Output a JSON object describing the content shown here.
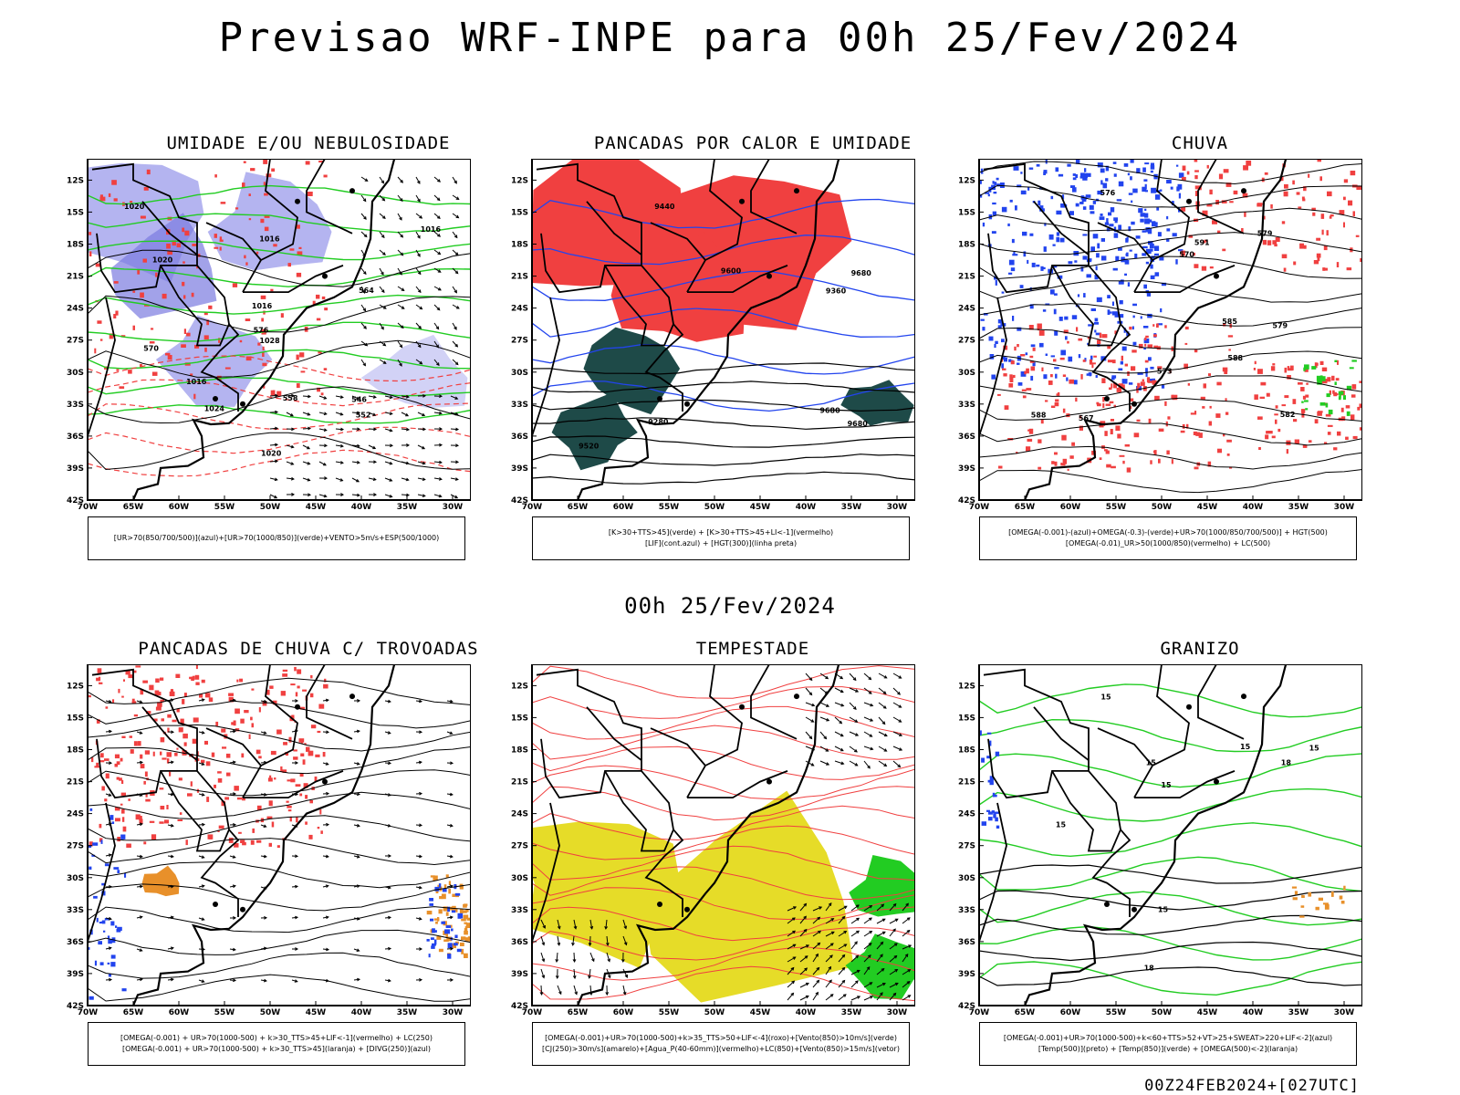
{
  "title": "Previsao WRF-INPE  para 00h 25/Fev/2024",
  "mid_title": "00h 25/Fev/2024",
  "footer": "00Z24FEB2024+[027UTC]",
  "axes": {
    "lat_labels": [
      "12S",
      "15S",
      "18S",
      "21S",
      "24S",
      "27S",
      "30S",
      "33S",
      "36S",
      "39S",
      "42S"
    ],
    "lon_labels": [
      "70W",
      "65W",
      "60W",
      "55W",
      "50W",
      "45W",
      "40W",
      "35W",
      "30W"
    ]
  },
  "colors": {
    "red": "#f04040",
    "green": "#22cc22",
    "blue": "#2244ee",
    "lavender": "#b4b4f0",
    "purple": "#7a7ae0",
    "dark_teal": "#1e4a48",
    "yellow": "#e6dc28",
    "orange": "#e8902a"
  },
  "panels": [
    {
      "title": "UMIDADE E/OU NEBULOSIDADE",
      "legend": [
        "[UR>70(850/700/500)](azul)+[UR>70(1000/850)](verde)+VENTO>5m/s+ESP(500/1000)"
      ],
      "contour_labels": [
        "1016",
        "1016",
        "1016",
        "1016",
        "1020",
        "1020",
        "1020",
        "1024",
        "1028",
        "576",
        "570",
        "564",
        "558",
        "552",
        "546"
      ]
    },
    {
      "title": "PANCADAS POR CALOR E UMIDADE",
      "legend": [
        "[K>30+TTS>45](verde) + [K>30+TTS>45+LI<-1](vermelho)",
        "[LIF](cont.azul) + [HGT(300)](linha preta)"
      ],
      "contour_labels": [
        "9680",
        "9680",
        "9680",
        "9600",
        "9520",
        "9440",
        "9360",
        "9280"
      ]
    },
    {
      "title": "CHUVA",
      "legend": [
        "[OMEGA(-0.001)-(azul)+OMEGA(-0.3)-(verde)+UR>70(1000/850/700/500)] + HGT(500)",
        "[OMEGA(-0.01)_UR>50(1000/850)(vermelho) + LC(500)"
      ],
      "contour_labels": [
        "588",
        "588",
        "591",
        "585",
        "582",
        "579",
        "576",
        "573",
        "570",
        "567",
        "579"
      ]
    },
    {
      "title": "PANCADAS DE CHUVA C/ TROVOADAS",
      "legend": [
        "[OMEGA(-0.001) + UR>70(1000-500) + k>30_TTS>45+LIF<-1](vermelho) + LC(250)",
        "[OMEGA(-0.001) + UR>70(1000-500) + k>30_TTS>45](laranja) + [DIVG(250)](azul)"
      ],
      "contour_labels": []
    },
    {
      "title": "TEMPESTADE",
      "legend": [
        "[OMEGA(-0.001)+UR>70(1000-500)+k>35_TTS>50+LIF<-4](roxo)+[Vento(850)>10m/s](verde)",
        "[CJ(250)>30m/s](amarelo)+[Agua_P(40-60mm)](vermelho)+LC(850)+[Vento(850)>15m/s](vetor)"
      ],
      "contour_labels": []
    },
    {
      "title": "GRANIZO",
      "legend": [
        "[OMEGA(-0.001)+UR>70(1000-500)+k<60+TTS>52+VT>25+SWEAT>220+LIF<-2](azul)",
        "[Temp(500)](preto) + [Temp(850)](verde) + [OMEGA(500)<-2](laranja)"
      ],
      "contour_labels": [
        "15",
        "15",
        "15",
        "15",
        "15",
        "15",
        "15",
        "18",
        "18"
      ]
    }
  ]
}
